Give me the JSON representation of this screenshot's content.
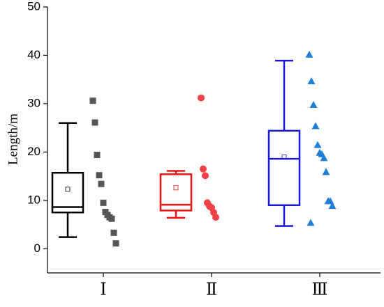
{
  "chart_data": {
    "type": "box",
    "y_label": "Length/m",
    "categories": [
      "Ⅰ",
      "Ⅱ",
      "Ⅲ"
    ],
    "ylim": [
      -5,
      50
    ],
    "yticks": [
      0,
      10,
      20,
      30,
      40,
      50
    ],
    "series": [
      {
        "color": "#000000",
        "point_color": "#555555",
        "marker": "square",
        "whisker_low": 2.4,
        "q1": 7.5,
        "median": 8.6,
        "q3": 15.7,
        "whisker_high": 26,
        "mean": 12.3,
        "points": [
          30.6,
          26.1,
          19.4,
          15.2,
          13.4,
          9.5,
          7.6,
          7.0,
          6.5,
          6.2,
          3.3,
          1.1
        ]
      },
      {
        "color": "#ee1111",
        "point_color": "#f04048",
        "marker": "circle",
        "whisker_low": 6.4,
        "q1": 7.9,
        "median": 9.1,
        "q3": 15.4,
        "whisker_high": 16.1,
        "mean": 12.6,
        "points": [
          31.2,
          16.5,
          15.1,
          9.5,
          8.8,
          8.5,
          7.5,
          6.5
        ]
      },
      {
        "color": "#1a1ad8",
        "point_color": "#1e7fd8",
        "marker": "triangle",
        "whisker_low": 4.7,
        "q1": 9.0,
        "median": 18.6,
        "q3": 24.4,
        "whisker_high": 38.9,
        "mean": 19.0,
        "points": [
          40.1,
          34.6,
          29.7,
          25.3,
          21.4,
          19.8,
          19.5,
          18.7,
          15.8,
          9.8,
          9.8,
          8.8,
          5.3
        ]
      }
    ]
  }
}
